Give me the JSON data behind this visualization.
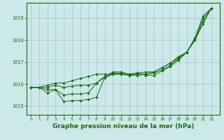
{
  "background_color": "#cce8e8",
  "grid_color": "#aacccc",
  "line_color": "#1a6b1a",
  "marker_color": "#1a6b1a",
  "xlabel": "Graphe pression niveau de la mer (hPa)",
  "xlabel_fontsize": 6.5,
  "ylabel_ticks": [
    1015,
    1016,
    1017,
    1018,
    1019
  ],
  "xlim": [
    -0.5,
    23
  ],
  "ylim": [
    1014.6,
    1019.7
  ],
  "series": [
    [
      1015.85,
      1015.85,
      1015.6,
      1015.75,
      1015.2,
      1015.25,
      1015.25,
      1015.3,
      1015.4,
      1016.3,
      1016.5,
      1016.5,
      1016.4,
      1016.5,
      1016.4,
      1016.4,
      1016.6,
      1016.8,
      1017.1,
      1017.45,
      1018.1,
      1019.1,
      1019.45
    ],
    [
      1015.85,
      1015.85,
      1015.75,
      1015.75,
      1015.5,
      1015.55,
      1015.55,
      1015.6,
      1016.05,
      1016.35,
      1016.55,
      1016.55,
      1016.45,
      1016.5,
      1016.55,
      1016.55,
      1016.75,
      1016.95,
      1017.2,
      1017.45,
      1018.05,
      1019.0,
      1019.45
    ],
    [
      1015.85,
      1015.85,
      1015.85,
      1015.95,
      1015.85,
      1015.9,
      1015.95,
      1015.95,
      1016.05,
      1016.3,
      1016.45,
      1016.45,
      1016.4,
      1016.4,
      1016.45,
      1016.5,
      1016.65,
      1016.85,
      1017.15,
      1017.45,
      1018.0,
      1018.85,
      1019.45
    ],
    [
      1015.85,
      1015.85,
      1015.95,
      1016.05,
      1016.05,
      1016.15,
      1016.25,
      1016.35,
      1016.45,
      1016.45,
      1016.45,
      1016.45,
      1016.45,
      1016.45,
      1016.45,
      1016.55,
      1016.75,
      1016.95,
      1017.25,
      1017.45,
      1018.0,
      1018.75,
      1019.45
    ]
  ],
  "x_values": [
    0,
    1,
    2,
    3,
    4,
    5,
    6,
    7,
    8,
    9,
    10,
    11,
    12,
    13,
    14,
    15,
    16,
    17,
    18,
    19,
    20,
    21,
    22
  ]
}
